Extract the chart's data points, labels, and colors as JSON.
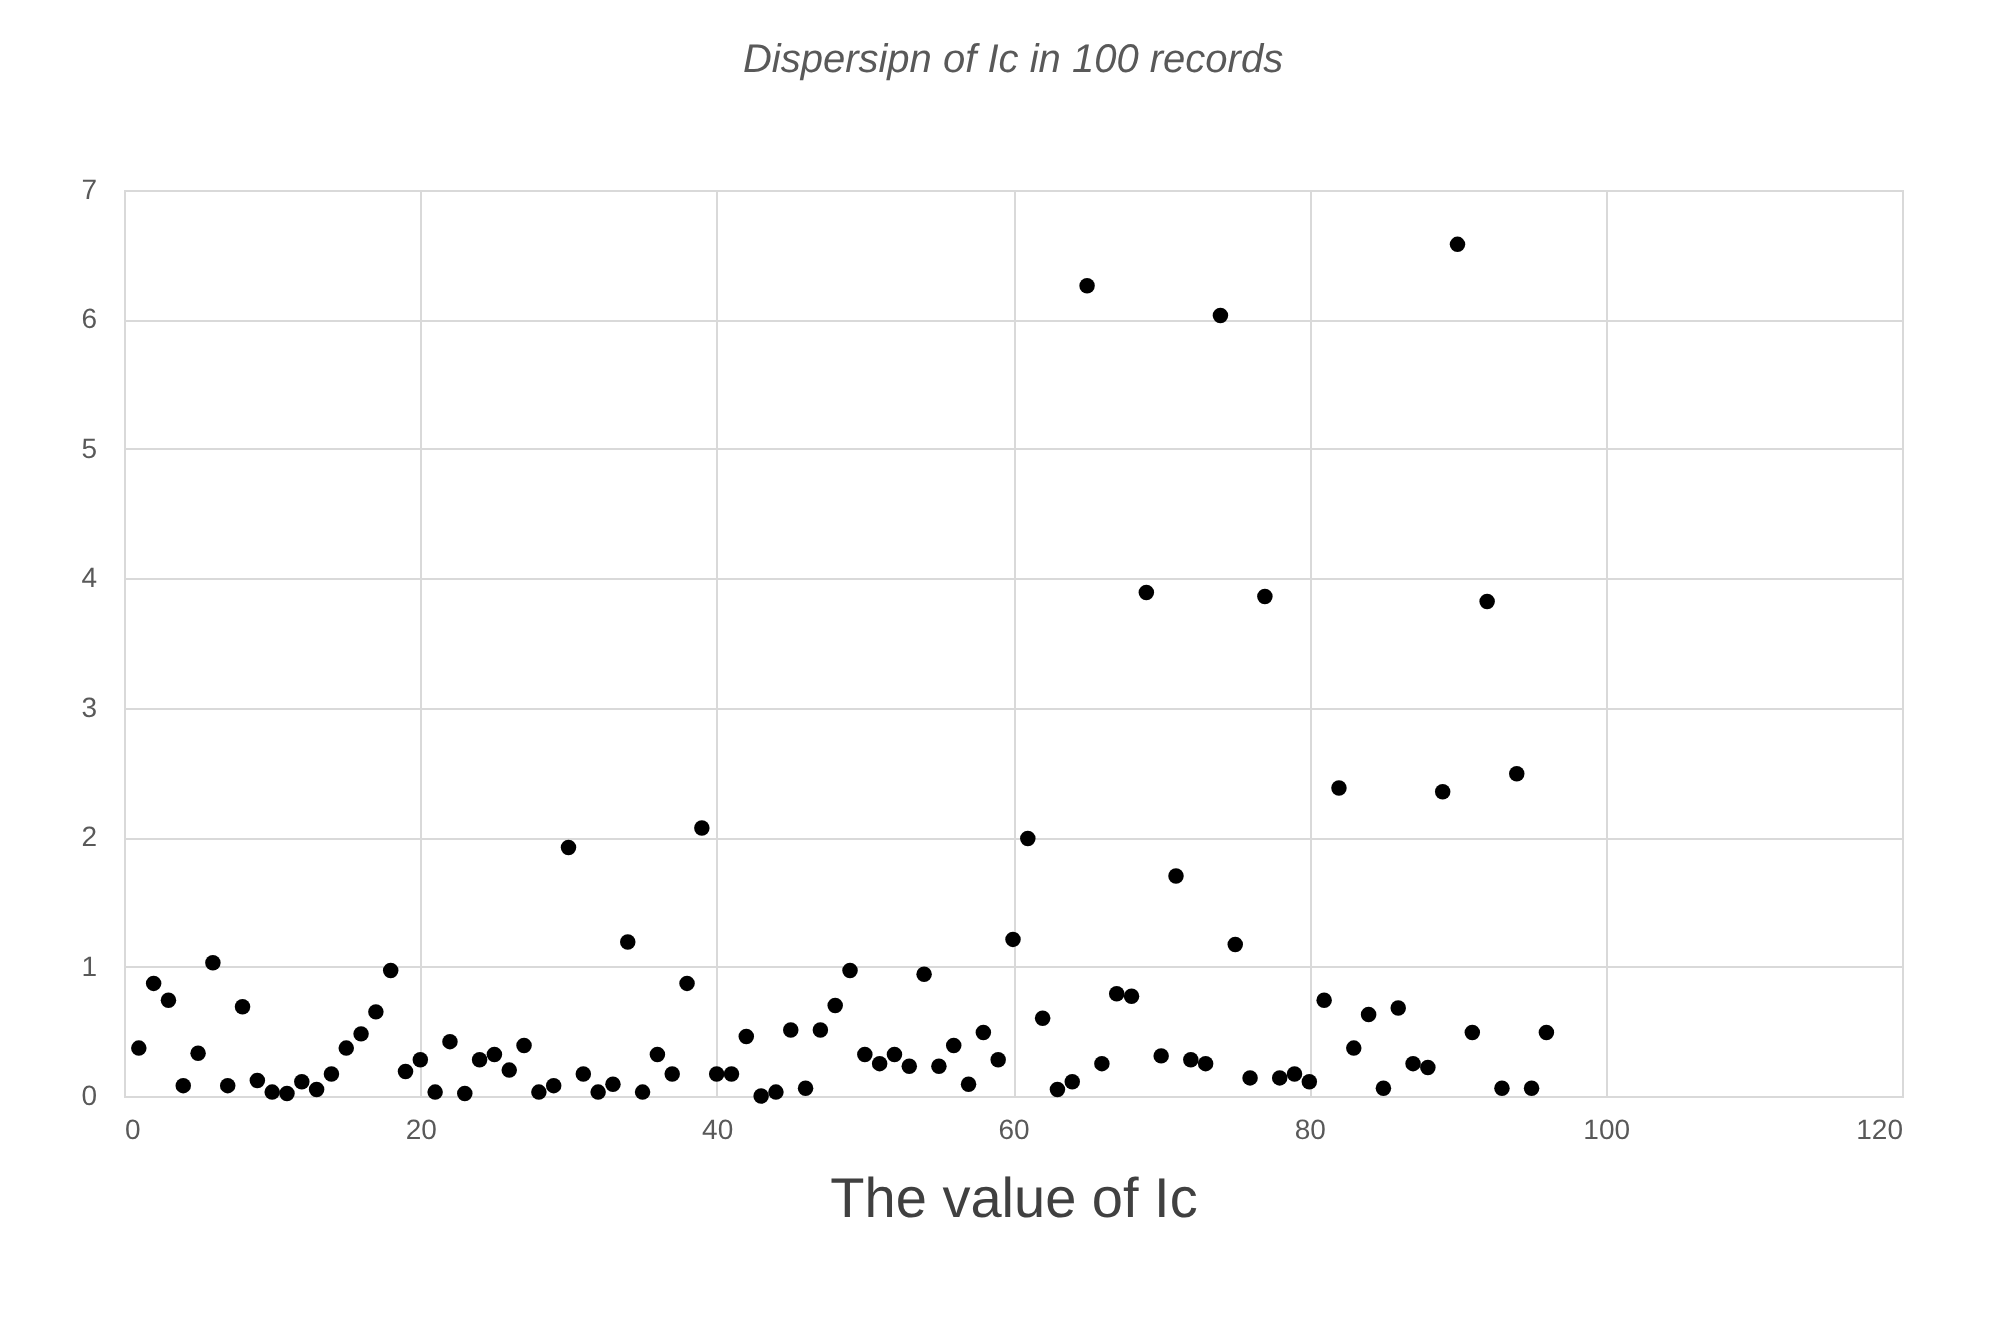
{
  "chart_data": {
    "type": "scatter",
    "title": "Dispersipn of Ic in 100 records",
    "xlabel": "The value of Ic",
    "x": [
      1,
      2,
      3,
      4,
      5,
      6,
      7,
      8,
      9,
      10,
      11,
      12,
      13,
      14,
      15,
      16,
      17,
      18,
      19,
      20,
      21,
      22,
      23,
      24,
      25,
      26,
      27,
      28,
      29,
      30,
      31,
      32,
      33,
      34,
      35,
      36,
      37,
      38,
      39,
      40,
      41,
      42,
      43,
      44,
      45,
      46,
      47,
      48,
      49,
      50,
      51,
      52,
      53,
      54,
      55,
      56,
      57,
      58,
      59,
      60,
      61,
      62,
      63,
      64,
      65,
      66,
      67,
      68,
      69,
      70,
      71,
      72,
      73,
      74,
      75,
      76,
      77,
      78,
      79,
      80,
      81,
      82,
      83,
      84,
      85,
      86,
      87,
      88,
      89,
      90,
      91,
      92,
      93,
      94,
      95,
      96
    ],
    "series": [
      {
        "color": "#000000",
        "values": [
          0.37,
          0.87,
          0.74,
          0.08,
          0.33,
          1.03,
          0.08,
          0.69,
          0.12,
          0.03,
          0.02,
          0.11,
          0.05,
          0.17,
          0.37,
          0.48,
          0.65,
          0.97,
          0.19,
          0.28,
          0.03,
          0.42,
          0.02,
          0.28,
          0.32,
          0.2,
          0.39,
          0.03,
          0.08,
          1.92,
          0.17,
          0.03,
          0.09,
          1.19,
          0.03,
          0.32,
          0.17,
          0.87,
          2.07,
          0.17,
          0.17,
          0.46,
          0.0,
          0.03,
          0.51,
          0.06,
          0.51,
          0.7,
          0.97,
          0.32,
          0.25,
          0.32,
          0.23,
          0.94,
          0.23,
          0.39,
          0.09,
          0.49,
          0.28,
          1.21,
          1.99,
          0.6,
          0.05,
          0.11,
          6.26,
          0.25,
          0.79,
          0.77,
          3.89,
          0.31,
          1.7,
          0.28,
          0.25,
          6.03,
          1.17,
          0.14,
          3.86,
          0.14,
          0.17,
          0.11,
          0.74,
          2.38,
          0.37,
          0.63,
          0.06,
          0.68,
          0.25,
          0.22,
          2.35,
          6.58,
          0.49,
          3.82,
          0.06,
          2.49,
          0.06,
          0.49
        ]
      }
    ],
    "xlim": [
      0,
      120
    ],
    "xticks": [
      0,
      20,
      40,
      60,
      80,
      100,
      120
    ],
    "ylim": [
      0,
      7
    ],
    "yticks": [
      0,
      1,
      2,
      3,
      4,
      5,
      6,
      7
    ],
    "grid": true,
    "marker": "circle"
  }
}
